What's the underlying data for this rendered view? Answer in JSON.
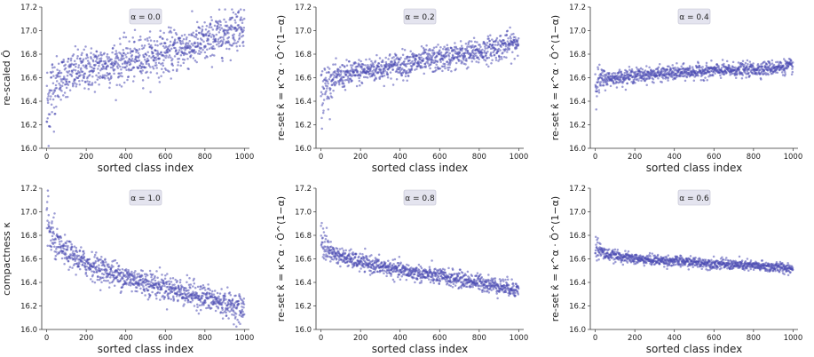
{
  "colors": {
    "points": "#4b4bb3",
    "title_box": "#e4e4ef"
  },
  "chart_data": [
    {
      "type": "scatter",
      "title": "α = 0.0",
      "xlabel": "sorted class index",
      "ylabel": "re-scaled Ô",
      "xlim": [
        -25,
        1025
      ],
      "ylim": [
        16.0,
        17.2
      ],
      "xticks": [
        0,
        200,
        400,
        600,
        800,
        1000
      ],
      "yticks": [
        "16.0",
        "16.2",
        "16.4",
        "16.6",
        "16.8",
        "17.0",
        "17.2"
      ],
      "grid": false,
      "trend": [
        [
          0,
          16.3
        ],
        [
          20,
          16.48
        ],
        [
          60,
          16.58
        ],
        [
          100,
          16.62
        ],
        [
          200,
          16.67
        ],
        [
          400,
          16.74
        ],
        [
          600,
          16.81
        ],
        [
          800,
          16.9
        ],
        [
          1000,
          17.06
        ]
      ],
      "spread": 0.09
    },
    {
      "type": "scatter",
      "title": "α = 0.2",
      "xlabel": "sorted class index",
      "ylabel": "re-set κ̂ = κ^α · Ô^(1−α)",
      "xlim": [
        -25,
        1025
      ],
      "ylim": [
        16.0,
        17.2
      ],
      "xticks": [
        0,
        200,
        400,
        600,
        800,
        1000
      ],
      "yticks": [
        "16.0",
        "16.2",
        "16.4",
        "16.6",
        "16.8",
        "17.0",
        "17.2"
      ],
      "grid": false,
      "trend": [
        [
          0,
          16.42
        ],
        [
          20,
          16.52
        ],
        [
          60,
          16.58
        ],
        [
          100,
          16.61
        ],
        [
          200,
          16.65
        ],
        [
          400,
          16.71
        ],
        [
          600,
          16.76
        ],
        [
          800,
          16.82
        ],
        [
          1000,
          16.9
        ]
      ],
      "spread": 0.055
    },
    {
      "type": "scatter",
      "title": "α = 0.4",
      "xlabel": "sorted class index",
      "ylabel": "re-set κ̂ = κ^α · Ô^(1−α)",
      "xlim": [
        -25,
        1025
      ],
      "ylim": [
        16.0,
        17.2
      ],
      "xticks": [
        0,
        200,
        400,
        600,
        800,
        1000
      ],
      "yticks": [
        "16.0",
        "16.2",
        "16.4",
        "16.6",
        "16.8",
        "17.0",
        "17.2"
      ],
      "grid": false,
      "trend": [
        [
          0,
          16.56
        ],
        [
          50,
          16.59
        ],
        [
          200,
          16.62
        ],
        [
          400,
          16.64
        ],
        [
          600,
          16.66
        ],
        [
          800,
          16.67
        ],
        [
          1000,
          16.7
        ]
      ],
      "spread": 0.03
    },
    {
      "type": "scatter",
      "title": "α = 1.0",
      "xlabel": "sorted class index",
      "ylabel": "compactness κ",
      "xlim": [
        -25,
        1025
      ],
      "ylim": [
        16.0,
        17.2
      ],
      "xticks": [
        0,
        200,
        400,
        600,
        800,
        1000
      ],
      "yticks": [
        "16.0",
        "16.2",
        "16.4",
        "16.6",
        "16.8",
        "17.0",
        "17.2"
      ],
      "grid": false,
      "trend": [
        [
          0,
          16.95
        ],
        [
          20,
          16.8
        ],
        [
          60,
          16.7
        ],
        [
          100,
          16.65
        ],
        [
          200,
          16.56
        ],
        [
          400,
          16.44
        ],
        [
          600,
          16.36
        ],
        [
          800,
          16.27
        ],
        [
          1000,
          16.17
        ]
      ],
      "spread": 0.055
    },
    {
      "type": "scatter",
      "title": "α = 0.8",
      "xlabel": "sorted class index",
      "ylabel": "re-set κ̂ = κ^α · Ô^(1−α)",
      "xlim": [
        -25,
        1025
      ],
      "ylim": [
        16.0,
        17.2
      ],
      "xticks": [
        0,
        200,
        400,
        600,
        800,
        1000
      ],
      "yticks": [
        "16.0",
        "16.2",
        "16.4",
        "16.6",
        "16.8",
        "17.0",
        "17.2"
      ],
      "grid": false,
      "trend": [
        [
          0,
          16.82
        ],
        [
          20,
          16.7
        ],
        [
          60,
          16.65
        ],
        [
          100,
          16.62
        ],
        [
          200,
          16.57
        ],
        [
          400,
          16.5
        ],
        [
          600,
          16.45
        ],
        [
          800,
          16.4
        ],
        [
          1000,
          16.34
        ]
      ],
      "spread": 0.035
    },
    {
      "type": "scatter",
      "title": "α = 0.6",
      "xlabel": "sorted class index",
      "ylabel": "re-set κ̂ = κ^α · Ô^(1−α)",
      "xlim": [
        -25,
        1025
      ],
      "ylim": [
        16.0,
        17.2
      ],
      "xticks": [
        0,
        200,
        400,
        600,
        800,
        1000
      ],
      "yticks": [
        "16.0",
        "16.2",
        "16.4",
        "16.6",
        "16.8",
        "17.0",
        "17.2"
      ],
      "grid": false,
      "trend": [
        [
          0,
          16.7
        ],
        [
          50,
          16.64
        ],
        [
          200,
          16.6
        ],
        [
          400,
          16.58
        ],
        [
          600,
          16.56
        ],
        [
          800,
          16.54
        ],
        [
          1000,
          16.52
        ]
      ],
      "spread": 0.022
    }
  ]
}
